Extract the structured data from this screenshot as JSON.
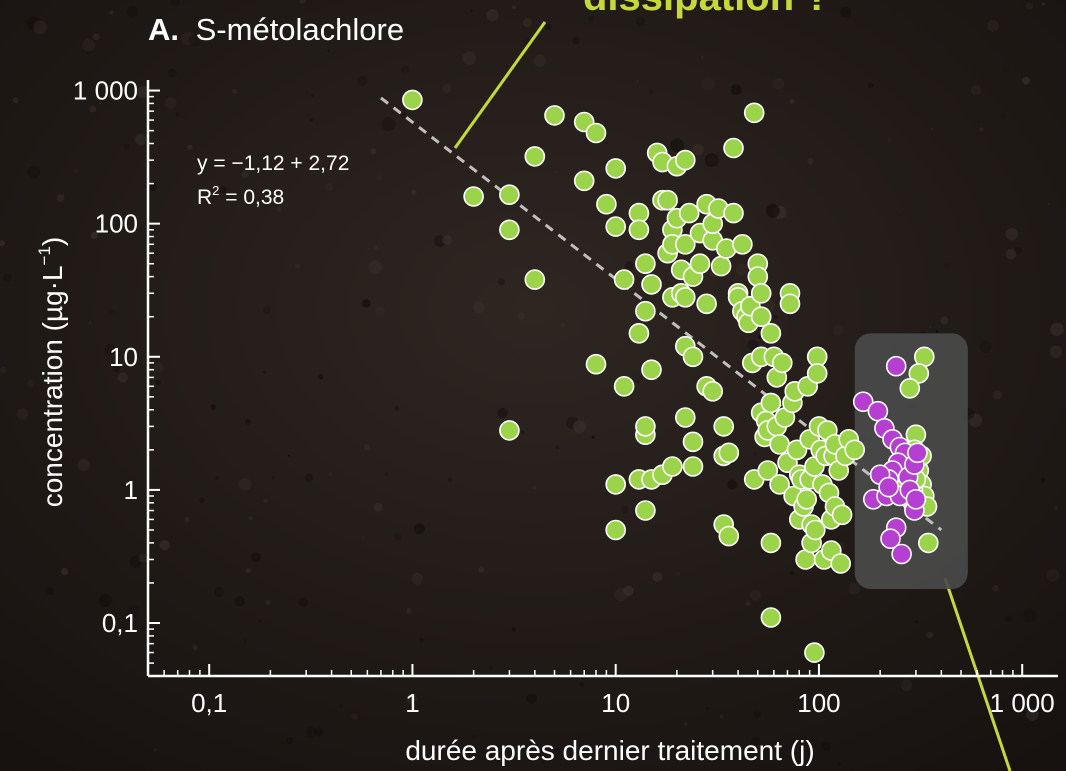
{
  "panel_label": "A.",
  "panel_title": "S-métolachlore",
  "header_fragment": "dissipation ?",
  "equation": "y = −1,12 + 2,72",
  "r2_prefix": "R",
  "r2_sup": "2",
  "r2_value": " = 0,38",
  "colors": {
    "background": "#231d19",
    "green_points": "#9bd44a",
    "purple_points": "#b43fd1",
    "highlight_box": "#4a4a4a",
    "callout_line": "#c6d83a",
    "trend_line": "#bfbfbf",
    "header_text": "#c6d83a"
  },
  "chart_data": {
    "type": "scatter",
    "xscale": "log",
    "yscale": "log",
    "xlim": [
      0.05,
      1500
    ],
    "ylim": [
      0.04,
      1200
    ],
    "x_ticks": [
      {
        "value": 0.1,
        "label": "0,1"
      },
      {
        "value": 1,
        "label": "1"
      },
      {
        "value": 10,
        "label": "10"
      },
      {
        "value": 100,
        "label": "100"
      },
      {
        "value": 1000,
        "label": "1 000"
      }
    ],
    "y_ticks": [
      {
        "value": 0.1,
        "label": "0,1"
      },
      {
        "value": 1,
        "label": "1"
      },
      {
        "value": 10,
        "label": "10"
      },
      {
        "value": 100,
        "label": "100"
      },
      {
        "value": 1000,
        "label": "1 000"
      }
    ],
    "xlabel": "durée après dernier traitement (j)",
    "ylabel_main": "concentration (µg·L",
    "ylabel_sup": "−1",
    "ylabel_end": ")",
    "trendline": {
      "x": [
        0.7,
        400
      ],
      "y": [
        880,
        0.5
      ]
    },
    "highlight_box": {
      "x": [
        150,
        540
      ],
      "y": [
        0.18,
        15
      ]
    },
    "series": [
      {
        "color": "#9bd44a",
        "points": [
          [
            1,
            850
          ],
          [
            2,
            160
          ],
          [
            3,
            165
          ],
          [
            3,
            90
          ],
          [
            3,
            2.8
          ],
          [
            4,
            320
          ],
          [
            4,
            38
          ],
          [
            5,
            650
          ],
          [
            7,
            580
          ],
          [
            7,
            210
          ],
          [
            8,
            480
          ],
          [
            8,
            8.8
          ],
          [
            9,
            140
          ],
          [
            10,
            260
          ],
          [
            10,
            95
          ],
          [
            10,
            1.1
          ],
          [
            10,
            0.5
          ],
          [
            11,
            38
          ],
          [
            11,
            6
          ],
          [
            13,
            120
          ],
          [
            13,
            90
          ],
          [
            13,
            15
          ],
          [
            13,
            1.2
          ],
          [
            14,
            50
          ],
          [
            14,
            22
          ],
          [
            14,
            2.6
          ],
          [
            14,
            3
          ],
          [
            14,
            0.7
          ],
          [
            15,
            35
          ],
          [
            15,
            8
          ],
          [
            15,
            1.2
          ],
          [
            16,
            340
          ],
          [
            17,
            290
          ],
          [
            17,
            150
          ],
          [
            17,
            1.3
          ],
          [
            18,
            60
          ],
          [
            18,
            150
          ],
          [
            19,
            90
          ],
          [
            19,
            70
          ],
          [
            19,
            28
          ],
          [
            19,
            1.5
          ],
          [
            20,
            270
          ],
          [
            20,
            110
          ],
          [
            21,
            45
          ],
          [
            21,
            30
          ],
          [
            22,
            300
          ],
          [
            22,
            70
          ],
          [
            22,
            28
          ],
          [
            22,
            3.5
          ],
          [
            22,
            12
          ],
          [
            23,
            120
          ],
          [
            24,
            40
          ],
          [
            24,
            10
          ],
          [
            24,
            2.3
          ],
          [
            24,
            1.5
          ],
          [
            26,
            85
          ],
          [
            26,
            50
          ],
          [
            28,
            140
          ],
          [
            28,
            25
          ],
          [
            28,
            6
          ],
          [
            30,
            75
          ],
          [
            30,
            100
          ],
          [
            30,
            5.5
          ],
          [
            32,
            130
          ],
          [
            33,
            48
          ],
          [
            34,
            3
          ],
          [
            34,
            1.8
          ],
          [
            34,
            0.55
          ],
          [
            35,
            65
          ],
          [
            36,
            1.9
          ],
          [
            36,
            0.45
          ],
          [
            38,
            370
          ],
          [
            38,
            120
          ],
          [
            40,
            30
          ],
          [
            40,
            28
          ],
          [
            42,
            70
          ],
          [
            42,
            22
          ],
          [
            44,
            20
          ],
          [
            45,
            18
          ],
          [
            46,
            24
          ],
          [
            47,
            9
          ],
          [
            48,
            1.2
          ],
          [
            48,
            680
          ],
          [
            50,
            50
          ],
          [
            50,
            40
          ],
          [
            52,
            30
          ],
          [
            52,
            20
          ],
          [
            52,
            10
          ],
          [
            52,
            3.8
          ],
          [
            54,
            2.5
          ],
          [
            55,
            3.3
          ],
          [
            56,
            1.4
          ],
          [
            56,
            2.8
          ],
          [
            58,
            15
          ],
          [
            58,
            4.5
          ],
          [
            58,
            0.4
          ],
          [
            58,
            0.11
          ],
          [
            60,
            10
          ],
          [
            62,
            7
          ],
          [
            62,
            3
          ],
          [
            64,
            2.2
          ],
          [
            64,
            1.1
          ],
          [
            66,
            9
          ],
          [
            68,
            3.5
          ],
          [
            70,
            1.6
          ],
          [
            72,
            30
          ],
          [
            72,
            25
          ],
          [
            74,
            4.5
          ],
          [
            75,
            0.9
          ],
          [
            76,
            5.5
          ],
          [
            78,
            2
          ],
          [
            80,
            0.6
          ],
          [
            80,
            1.3
          ],
          [
            82,
            1.2
          ],
          [
            84,
            0.75
          ],
          [
            86,
            0.3
          ],
          [
            87,
            0.85
          ],
          [
            88,
            6
          ],
          [
            90,
            2.4
          ],
          [
            90,
            1.2
          ],
          [
            92,
            0.4
          ],
          [
            92,
            0.55
          ],
          [
            95,
            1.5
          ],
          [
            96,
            0.5
          ],
          [
            98,
            10
          ],
          [
            98,
            7.5
          ],
          [
            100,
            3
          ],
          [
            102,
            2
          ],
          [
            104,
            1.1
          ],
          [
            106,
            0.3
          ],
          [
            108,
            1.8
          ],
          [
            110,
            2.8
          ],
          [
            112,
            0.95
          ],
          [
            115,
            0.6
          ],
          [
            115,
            0.35
          ],
          [
            118,
            1.8
          ],
          [
            120,
            2.2
          ],
          [
            120,
            0.75
          ],
          [
            125,
            1.4
          ],
          [
            128,
            0.28
          ],
          [
            130,
            0.65
          ],
          [
            135,
            1.8
          ],
          [
            95,
            0.06
          ],
          [
            140,
            2.4
          ],
          [
            150,
            2
          ],
          [
            330,
            10
          ],
          [
            310,
            7.5
          ],
          [
            280,
            5.8
          ],
          [
            300,
            2.6
          ],
          [
            295,
            2
          ],
          [
            270,
            1.6
          ],
          [
            310,
            1.4
          ],
          [
            320,
            1.1
          ],
          [
            330,
            0.9
          ],
          [
            340,
            0.75
          ],
          [
            345,
            0.4
          ],
          [
            280,
            1.3
          ],
          [
            290,
            1.0
          ],
          [
            290,
            0.8
          ],
          [
            300,
            1.2
          ],
          [
            320,
            1.8
          ],
          [
            250,
            1.1
          ]
        ]
      },
      {
        "color": "#b43fd1",
        "points": [
          [
            240,
            8.5
          ],
          [
            165,
            4.6
          ],
          [
            195,
            3.9
          ],
          [
            210,
            2.9
          ],
          [
            230,
            2.4
          ],
          [
            250,
            2.1
          ],
          [
            265,
            1.9
          ],
          [
            245,
            1.6
          ],
          [
            230,
            1.4
          ],
          [
            220,
            1.2
          ],
          [
            200,
            1.3
          ],
          [
            185,
            0.85
          ],
          [
            215,
            0.9
          ],
          [
            250,
            0.9
          ],
          [
            275,
            1.25
          ],
          [
            295,
            1.55
          ],
          [
            280,
            1.0
          ],
          [
            305,
            1.9
          ],
          [
            240,
            0.52
          ],
          [
            225,
            0.43
          ],
          [
            255,
            0.33
          ],
          [
            295,
            0.7
          ],
          [
            300,
            0.85
          ],
          [
            220,
            1.05
          ]
        ]
      }
    ]
  }
}
